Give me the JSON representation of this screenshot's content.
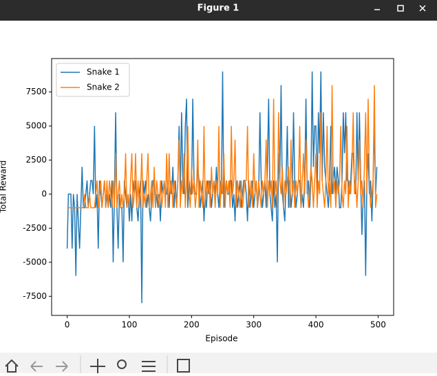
{
  "window": {
    "title": "Figure 1"
  },
  "chart_data": {
    "type": "line",
    "x_label": "Episode",
    "y_label": "Total Reward",
    "x": [
      0,
      2,
      4,
      6,
      8,
      10,
      12,
      14,
      16,
      18,
      20,
      22,
      24,
      26,
      28,
      30,
      32,
      34,
      36,
      38,
      40,
      42,
      44,
      46,
      48,
      50,
      52,
      54,
      56,
      58,
      60,
      62,
      64,
      66,
      68,
      70,
      72,
      74,
      76,
      78,
      80,
      82,
      84,
      86,
      88,
      90,
      92,
      94,
      96,
      98,
      100,
      102,
      104,
      106,
      108,
      110,
      112,
      114,
      116,
      118,
      120,
      122,
      124,
      126,
      128,
      130,
      132,
      134,
      136,
      138,
      140,
      142,
      144,
      146,
      148,
      150,
      152,
      154,
      156,
      158,
      160,
      162,
      164,
      166,
      168,
      170,
      172,
      174,
      176,
      178,
      180,
      182,
      184,
      186,
      188,
      190,
      192,
      194,
      196,
      198,
      200,
      202,
      204,
      206,
      208,
      210,
      212,
      214,
      216,
      218,
      220,
      222,
      224,
      226,
      228,
      230,
      232,
      234,
      236,
      238,
      240,
      242,
      244,
      246,
      248,
      250,
      252,
      254,
      256,
      258,
      260,
      262,
      264,
      266,
      268,
      270,
      272,
      274,
      276,
      278,
      280,
      282,
      284,
      286,
      288,
      290,
      292,
      294,
      296,
      298,
      300,
      302,
      304,
      306,
      308,
      310,
      312,
      314,
      316,
      318,
      320,
      322,
      324,
      326,
      328,
      330,
      332,
      334,
      336,
      338,
      340,
      342,
      344,
      346,
      348,
      350,
      352,
      354,
      356,
      358,
      360,
      362,
      364,
      366,
      368,
      370,
      372,
      374,
      376,
      378,
      380,
      382,
      384,
      386,
      388,
      390,
      392,
      394,
      396,
      398,
      400,
      402,
      404,
      406,
      408,
      410,
      412,
      414,
      416,
      418,
      420,
      422,
      424,
      426,
      428,
      430,
      432,
      434,
      436,
      438,
      440,
      442,
      444,
      446,
      448,
      450,
      452,
      454,
      456,
      458,
      460,
      462,
      464,
      466,
      468,
      470,
      472,
      474,
      476,
      478,
      480,
      482,
      484,
      486,
      488,
      490,
      492,
      494,
      496,
      498
    ],
    "series": [
      {
        "name": "Snake 1",
        "color": "#1f77b4",
        "values": [
          -4000,
          0,
          0,
          0,
          -4000,
          0,
          -1000,
          -6000,
          0,
          -2000,
          -4000,
          -1000,
          2000,
          -1000,
          -1000,
          0,
          1000,
          -1000,
          0,
          1000,
          1000,
          0,
          5000,
          -1000,
          0,
          -4000,
          1000,
          0,
          -1000,
          0,
          1000,
          -1000,
          0,
          -1000,
          0,
          -1000,
          1000,
          -5000,
          0,
          6000,
          -1000,
          -4000,
          0,
          -1000,
          -1000,
          -5000,
          1000,
          0,
          -1000,
          0,
          -2000,
          0,
          -2000,
          1000,
          0,
          1000,
          -1000,
          -2000,
          0,
          1000,
          -8000,
          1000,
          0,
          1000,
          -1000,
          0,
          -1000,
          -2000,
          0,
          1000,
          1000,
          -1000,
          0,
          -1000,
          0,
          -2000,
          1000,
          0,
          1000,
          0,
          0,
          1000,
          -1000,
          1000,
          0,
          2000,
          -1000,
          1000,
          -1000,
          1000,
          5000,
          0,
          6000,
          1000,
          0,
          5000,
          7000,
          -1000,
          1000,
          0,
          0,
          7000,
          1000,
          0,
          0,
          2000,
          1000,
          -1000,
          0,
          1000,
          -2000,
          0,
          -1000,
          1000,
          0,
          1000,
          -1000,
          0,
          1000,
          0,
          2000,
          0,
          -1000,
          1000,
          0,
          9000,
          -1000,
          0,
          1000,
          0,
          0,
          1000,
          1000,
          -1000,
          0,
          -2000,
          1000,
          -1000,
          0,
          1000,
          -1000,
          0,
          1000,
          1000,
          0,
          -2000,
          1000,
          -1000,
          0,
          1000,
          -1000,
          0,
          1000,
          -1000,
          0,
          6000,
          1000,
          -1000,
          0,
          1000,
          -1000,
          2000,
          7000,
          0,
          -1000,
          -2000,
          1000,
          -1000,
          0,
          -5000,
          3000,
          1000,
          8000,
          0,
          -1000,
          -2000,
          1000,
          5000,
          -1000,
          1000,
          -1000,
          0,
          6000,
          1000,
          -1000,
          0,
          1000,
          1000,
          -1000,
          0,
          -1000,
          1000,
          7000,
          0,
          1000,
          -1000,
          1000,
          9000,
          2000,
          5000,
          5000,
          0,
          6000,
          3000,
          9000,
          1000,
          6000,
          2000,
          1000,
          0,
          -1000,
          1000,
          5000,
          0,
          1000,
          2000,
          0,
          2000,
          1000,
          -1000,
          -1000,
          1000,
          6000,
          3000,
          6000,
          1000,
          1000,
          0,
          1000,
          3000,
          3000,
          1000,
          0,
          6000,
          1000,
          6000,
          1000,
          -3000,
          0,
          1000,
          -6000,
          1000,
          3000,
          0,
          1000,
          -2000,
          1000,
          5000,
          0,
          2000
        ]
      },
      {
        "name": "Snake 2",
        "color": "#ff7f0e",
        "values": [
          -1000,
          -1000,
          -1000,
          -1000,
          -1000,
          -1000,
          -1000,
          -1000,
          -1000,
          -1000,
          -1000,
          -1000,
          -1000,
          -1000,
          0,
          -1000,
          -1000,
          -1000,
          0,
          -1000,
          -1000,
          -1000,
          -1000,
          0,
          1000,
          -1000,
          0,
          1000,
          -1000,
          0,
          1000,
          -1000,
          1000,
          -1000,
          1000,
          0,
          -1000,
          1000,
          -1000,
          3000,
          -1000,
          0,
          1000,
          -1000,
          0,
          -1000,
          0,
          3000,
          -1000,
          0,
          -1000,
          1000,
          3000,
          -1000,
          0,
          3000,
          -1000,
          1000,
          -1000,
          0,
          3000,
          -1000,
          0,
          -1000,
          1000,
          3000,
          -1000,
          0,
          1000,
          -1000,
          2000,
          -1000,
          1000,
          0,
          -1000,
          1000,
          -1000,
          0,
          1000,
          -1000,
          3000,
          -1000,
          3000,
          0,
          1000,
          -1000,
          1000,
          0,
          -1000,
          1000,
          4000,
          -1000,
          1000,
          0,
          3000,
          -1000,
          1000,
          5000,
          0,
          -1000,
          2000,
          0,
          1000,
          -1000,
          0,
          4000,
          -1000,
          1000,
          0,
          -1000,
          5000,
          -1000,
          1000,
          0,
          1000,
          -1000,
          2000,
          0,
          1000,
          -1000,
          1000,
          0,
          5000,
          -1000,
          1000,
          0,
          3000,
          -1000,
          1000,
          0,
          1000,
          -1000,
          5000,
          0,
          1000,
          4000,
          -1000,
          1000,
          0,
          -1000,
          1000,
          -1000,
          0,
          1000,
          1000,
          5000,
          -1000,
          0,
          1000,
          -1000,
          3000,
          0,
          1000,
          -1000,
          1000,
          0,
          -1000,
          1000,
          0,
          1000,
          4000,
          -1000,
          1000,
          0,
          1000,
          -1000,
          7000,
          0,
          1000,
          -1000,
          6000,
          1000,
          0,
          2000,
          -1000,
          1000,
          0,
          1000,
          2000,
          -1000,
          4000,
          0,
          1000,
          -1000,
          1000,
          0,
          1000,
          5000,
          -1000,
          1000,
          3000,
          0,
          4000,
          1000,
          -1000,
          0,
          2000,
          1000,
          -1000,
          1000,
          3000,
          -1000,
          1000,
          0,
          6000,
          1000,
          0,
          -1000,
          1000,
          5000,
          0,
          1000,
          -1000,
          8000,
          0,
          1000,
          -1000,
          1000,
          0,
          1000,
          5000,
          0,
          -1000,
          1000,
          0,
          5000,
          -1000,
          1000,
          0,
          2000,
          6000,
          0,
          1000,
          -1000,
          1000,
          4000,
          0,
          1000,
          -1000,
          2000,
          6000,
          0,
          7000,
          1000,
          -1000,
          0,
          1000,
          8000,
          -1000,
          0
        ]
      }
    ],
    "xlim": [
      -25,
      525
    ],
    "ylim": [
      -8900,
      9950
    ],
    "xticks": [
      0,
      100,
      200,
      300,
      400,
      500
    ],
    "yticks": [
      -7500,
      -5000,
      -2500,
      0,
      2500,
      5000,
      7500
    ],
    "legend": "upper left"
  }
}
